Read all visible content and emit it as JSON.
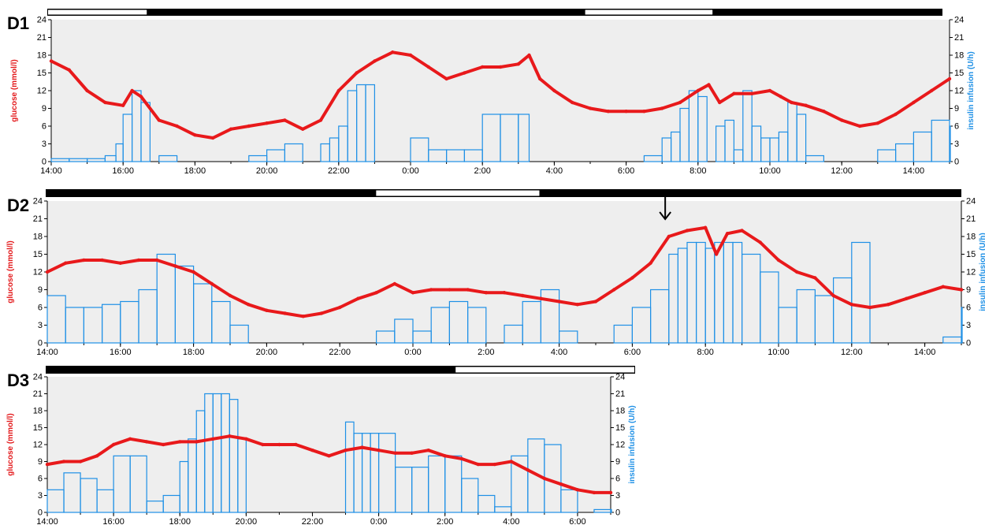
{
  "chart_data": [
    {
      "panel": "D1",
      "type": "line",
      "title": "D1",
      "ylabel_left": "glucose (mmol/l)",
      "ylabel_right": "insulin infusion (U/h)",
      "x_ticks": [
        "14:00",
        "16:00",
        "18:00",
        "20:00",
        "22:00",
        "0:00",
        "2:00",
        "4:00",
        "6:00",
        "8:00",
        "10:00",
        "12:00",
        "14:00"
      ],
      "x_range_hours": [
        14,
        39
      ],
      "y_ticks": [
        0,
        3,
        6,
        9,
        12,
        15,
        18,
        21,
        24
      ],
      "ylim": [
        0,
        24
      ],
      "day_night_bar": [
        {
          "from": 14.0,
          "to": 16.8,
          "state": "day"
        },
        {
          "from": 16.8,
          "to": 29.0,
          "state": "night"
        },
        {
          "from": 29.0,
          "to": 32.6,
          "state": "day"
        },
        {
          "from": 32.6,
          "to": 39.0,
          "state": "night"
        }
      ],
      "series": [
        {
          "kind": "glucose",
          "color": "#e8191b",
          "x": [
            14.0,
            14.5,
            15.0,
            15.5,
            16.0,
            16.25,
            16.5,
            17.0,
            17.5,
            18.0,
            18.5,
            19.0,
            19.5,
            20.0,
            20.5,
            21.0,
            21.5,
            22.0,
            22.5,
            23.0,
            23.5,
            24.0,
            24.5,
            25.0,
            25.5,
            26.0,
            26.5,
            27.0,
            27.3,
            27.6,
            28.0,
            28.5,
            29.0,
            29.5,
            30.0,
            30.5,
            31.0,
            31.5,
            32.0,
            32.3,
            32.6,
            33.0,
            33.5,
            34.0,
            34.3,
            34.6,
            35.0,
            35.5,
            36.0,
            36.5,
            37.0,
            37.5,
            38.0,
            38.5,
            39.0
          ],
          "values": [
            17,
            15.5,
            12,
            10,
            9.5,
            12,
            11,
            7,
            6,
            4.5,
            4,
            5.5,
            6,
            6.5,
            7,
            5.5,
            7,
            12,
            15,
            17,
            18.5,
            18,
            16,
            14,
            15,
            16,
            16,
            16.5,
            18,
            14,
            12,
            10,
            9,
            8.5,
            8.5,
            8.5,
            9,
            10,
            12,
            13,
            10,
            11.5,
            11.5,
            12,
            11,
            10,
            9.5,
            8.5,
            7,
            6,
            6.5,
            8,
            10,
            12,
            14
          ]
        },
        {
          "kind": "insulin",
          "color": "#1e90e6",
          "x": [
            14.0,
            14.5,
            15.0,
            15.5,
            15.8,
            16.0,
            16.25,
            16.5,
            16.75,
            17.0,
            17.5,
            18.0,
            18.5,
            19.0,
            19.5,
            20.0,
            20.5,
            21.0,
            21.5,
            21.75,
            22.0,
            22.25,
            22.5,
            22.75,
            23.0,
            23.5,
            24.0,
            24.5,
            25.0,
            25.5,
            26.0,
            26.5,
            27.0,
            27.3,
            27.6,
            28.0,
            28.5,
            29.0,
            29.5,
            30.0,
            30.5,
            31.0,
            31.25,
            31.5,
            31.75,
            32.0,
            32.25,
            32.5,
            32.75,
            33.0,
            33.25,
            33.5,
            33.75,
            34.0,
            34.25,
            34.5,
            34.75,
            35.0,
            35.5,
            36.0,
            36.5,
            37.0,
            37.5,
            38.0,
            38.5,
            39.0
          ],
          "values": [
            0.5,
            0.5,
            0.5,
            1,
            3,
            8,
            12,
            10,
            0,
            1,
            0,
            0,
            0,
            0,
            1,
            2,
            3,
            0,
            3,
            4,
            6,
            12,
            13,
            13,
            0,
            0,
            4,
            2,
            2,
            2,
            8,
            8,
            8,
            0,
            0,
            0,
            0,
            0,
            0,
            0,
            1,
            4,
            5,
            9,
            12,
            11,
            0,
            6,
            7,
            2,
            12,
            6,
            4,
            4,
            5,
            10,
            8,
            1,
            0,
            0,
            0,
            2,
            3,
            5,
            7,
            6
          ]
        }
      ]
    },
    {
      "panel": "D2",
      "type": "line",
      "title": "D2",
      "ylabel_left": "glucose (mmol/l)",
      "ylabel_right": "insulin infusion (U/h)",
      "x_ticks": [
        "14:00",
        "16:00",
        "18:00",
        "20:00",
        "22:00",
        "0:00",
        "2:00",
        "4:00",
        "6:00",
        "8:00",
        "10:00",
        "12:00",
        "14:00"
      ],
      "x_range_hours": [
        14,
        39
      ],
      "y_ticks": [
        0,
        3,
        6,
        9,
        12,
        15,
        18,
        21,
        24
      ],
      "ylim": [
        0,
        24
      ],
      "annotation": {
        "type": "arrow",
        "at_hour": 30.9,
        "symbol": "↓"
      },
      "day_night_bar": [
        {
          "from": 14.0,
          "to": 23.0,
          "state": "night"
        },
        {
          "from": 23.0,
          "to": 27.5,
          "state": "day"
        },
        {
          "from": 27.5,
          "to": 39.0,
          "state": "night"
        }
      ],
      "series": [
        {
          "kind": "glucose",
          "color": "#e8191b",
          "x": [
            14.0,
            14.5,
            15.0,
            15.5,
            16.0,
            16.5,
            17.0,
            17.5,
            18.0,
            18.5,
            19.0,
            19.5,
            20.0,
            20.5,
            21.0,
            21.5,
            22.0,
            22.5,
            23.0,
            23.5,
            24.0,
            24.5,
            25.0,
            25.5,
            26.0,
            26.5,
            27.0,
            27.5,
            28.0,
            28.5,
            29.0,
            29.5,
            30.0,
            30.5,
            31.0,
            31.5,
            32.0,
            32.3,
            32.6,
            33.0,
            33.5,
            34.0,
            34.5,
            35.0,
            35.5,
            36.0,
            36.5,
            37.0,
            37.5,
            38.0,
            38.5,
            39.0
          ],
          "values": [
            12,
            13.5,
            14,
            14,
            13.5,
            14,
            14,
            13,
            12,
            10,
            8,
            6.5,
            5.5,
            5,
            4.5,
            5,
            6,
            7.5,
            8.5,
            10,
            8.5,
            9,
            9,
            9,
            8.5,
            8.5,
            8,
            7.5,
            7,
            6.5,
            7,
            9,
            11,
            13.5,
            18,
            19,
            19.5,
            15,
            18.5,
            19,
            17,
            14,
            12,
            11,
            8,
            6.5,
            6,
            6.5,
            7.5,
            8.5,
            9.5,
            9
          ]
        },
        {
          "kind": "insulin",
          "color": "#1e90e6",
          "x": [
            14.0,
            14.5,
            15.0,
            15.5,
            16.0,
            16.5,
            17.0,
            17.5,
            18.0,
            18.5,
            19.0,
            19.5,
            20.0,
            20.5,
            21.0,
            21.5,
            22.0,
            22.5,
            23.0,
            23.5,
            24.0,
            24.5,
            25.0,
            25.5,
            26.0,
            26.5,
            27.0,
            27.5,
            28.0,
            28.5,
            29.0,
            29.5,
            30.0,
            30.5,
            31.0,
            31.25,
            31.5,
            31.75,
            32.0,
            32.25,
            32.5,
            32.75,
            33.0,
            33.5,
            34.0,
            34.5,
            35.0,
            35.5,
            36.0,
            36.5,
            37.0,
            37.5,
            38.0,
            38.5,
            39.0
          ],
          "values": [
            8,
            6,
            6,
            6.5,
            7,
            9,
            15,
            13,
            10,
            7,
            3,
            0,
            0,
            0,
            0,
            0,
            0,
            0,
            2,
            4,
            2,
            6,
            7,
            6,
            0,
            3,
            7,
            9,
            2,
            0,
            0,
            3,
            6,
            9,
            15,
            16,
            17,
            17,
            16,
            17,
            17,
            17,
            15,
            12,
            6,
            9,
            8,
            11,
            17,
            0,
            0,
            0,
            0,
            1,
            6
          ]
        }
      ]
    },
    {
      "panel": "D3",
      "type": "line",
      "title": "D3",
      "ylabel_left": "glucose (mmol/l)",
      "ylabel_right": "insulin infusion (U/h)",
      "x_ticks": [
        "14:00",
        "16:00",
        "18:00",
        "20:00",
        "22:00",
        "0:00",
        "2:00",
        "4:00",
        "6:00"
      ],
      "x_range_hours": [
        14,
        31
      ],
      "y_ticks": [
        0,
        3,
        6,
        9,
        12,
        15,
        18,
        21,
        24
      ],
      "ylim": [
        0,
        24
      ],
      "day_night_bar": [
        {
          "from": 14.0,
          "to": 25.8,
          "state": "night"
        },
        {
          "from": 25.8,
          "to": 31.0,
          "state": "day"
        }
      ],
      "series": [
        {
          "kind": "glucose",
          "color": "#e8191b",
          "x": [
            14.0,
            14.5,
            15.0,
            15.5,
            16.0,
            16.5,
            17.0,
            17.5,
            18.0,
            18.5,
            19.0,
            19.5,
            20.0,
            20.5,
            21.0,
            21.5,
            22.0,
            22.5,
            23.0,
            23.5,
            24.0,
            24.5,
            25.0,
            25.5,
            26.0,
            26.5,
            27.0,
            27.5,
            28.0,
            28.5,
            29.0,
            29.5,
            30.0,
            30.5,
            31.0
          ],
          "values": [
            8.5,
            9,
            9,
            10,
            12,
            13,
            12.5,
            12,
            12.5,
            12.5,
            13,
            13.5,
            13,
            12,
            12,
            12,
            11,
            10,
            11,
            11.5,
            11,
            10.5,
            10.5,
            11,
            10,
            9.5,
            8.5,
            8.5,
            9,
            7.5,
            6,
            5,
            4,
            3.5,
            3.5
          ]
        },
        {
          "kind": "insulin",
          "color": "#1e90e6",
          "x": [
            14.0,
            14.5,
            15.0,
            15.5,
            16.0,
            16.5,
            17.0,
            17.5,
            18.0,
            18.25,
            18.5,
            18.75,
            19.0,
            19.25,
            19.5,
            19.75,
            20.0,
            20.5,
            21.0,
            21.5,
            22.0,
            22.5,
            23.0,
            23.25,
            23.5,
            23.75,
            24.0,
            24.5,
            25.0,
            25.5,
            26.0,
            26.5,
            27.0,
            27.5,
            28.0,
            28.5,
            29.0,
            29.5,
            30.0,
            30.5,
            31.0
          ],
          "values": [
            4,
            7,
            6,
            4,
            10,
            10,
            2,
            3,
            9,
            13,
            18,
            21,
            21,
            21,
            20,
            13,
            0,
            0,
            0,
            0,
            0,
            0,
            16,
            14,
            14,
            14,
            14,
            8,
            8,
            10,
            10,
            6,
            3,
            1,
            10,
            13,
            12,
            4,
            0,
            0.5,
            0.5
          ]
        }
      ]
    }
  ],
  "colors": {
    "glucose": "#e8191b",
    "insulin": "#1e90e6",
    "plot_bg": "#eeeeee",
    "day": "#ffffff",
    "night": "#000000"
  }
}
